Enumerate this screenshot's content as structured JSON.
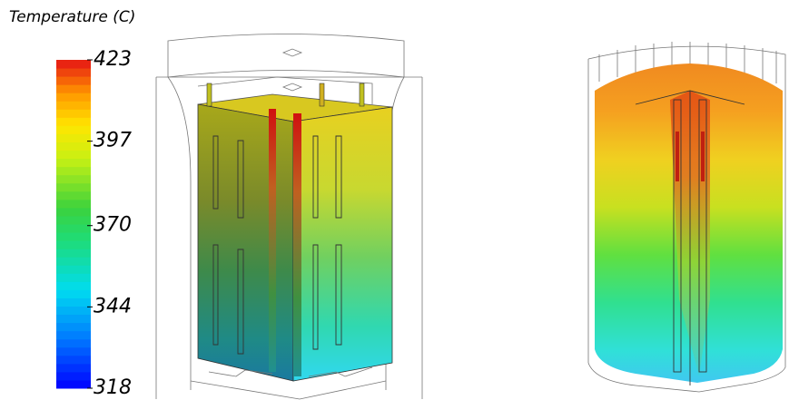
{
  "colorbar": {
    "title": "Temperature (C)",
    "range": [
      318,
      423
    ],
    "ticks": [
      318,
      344,
      370,
      397,
      423
    ]
  }
}
